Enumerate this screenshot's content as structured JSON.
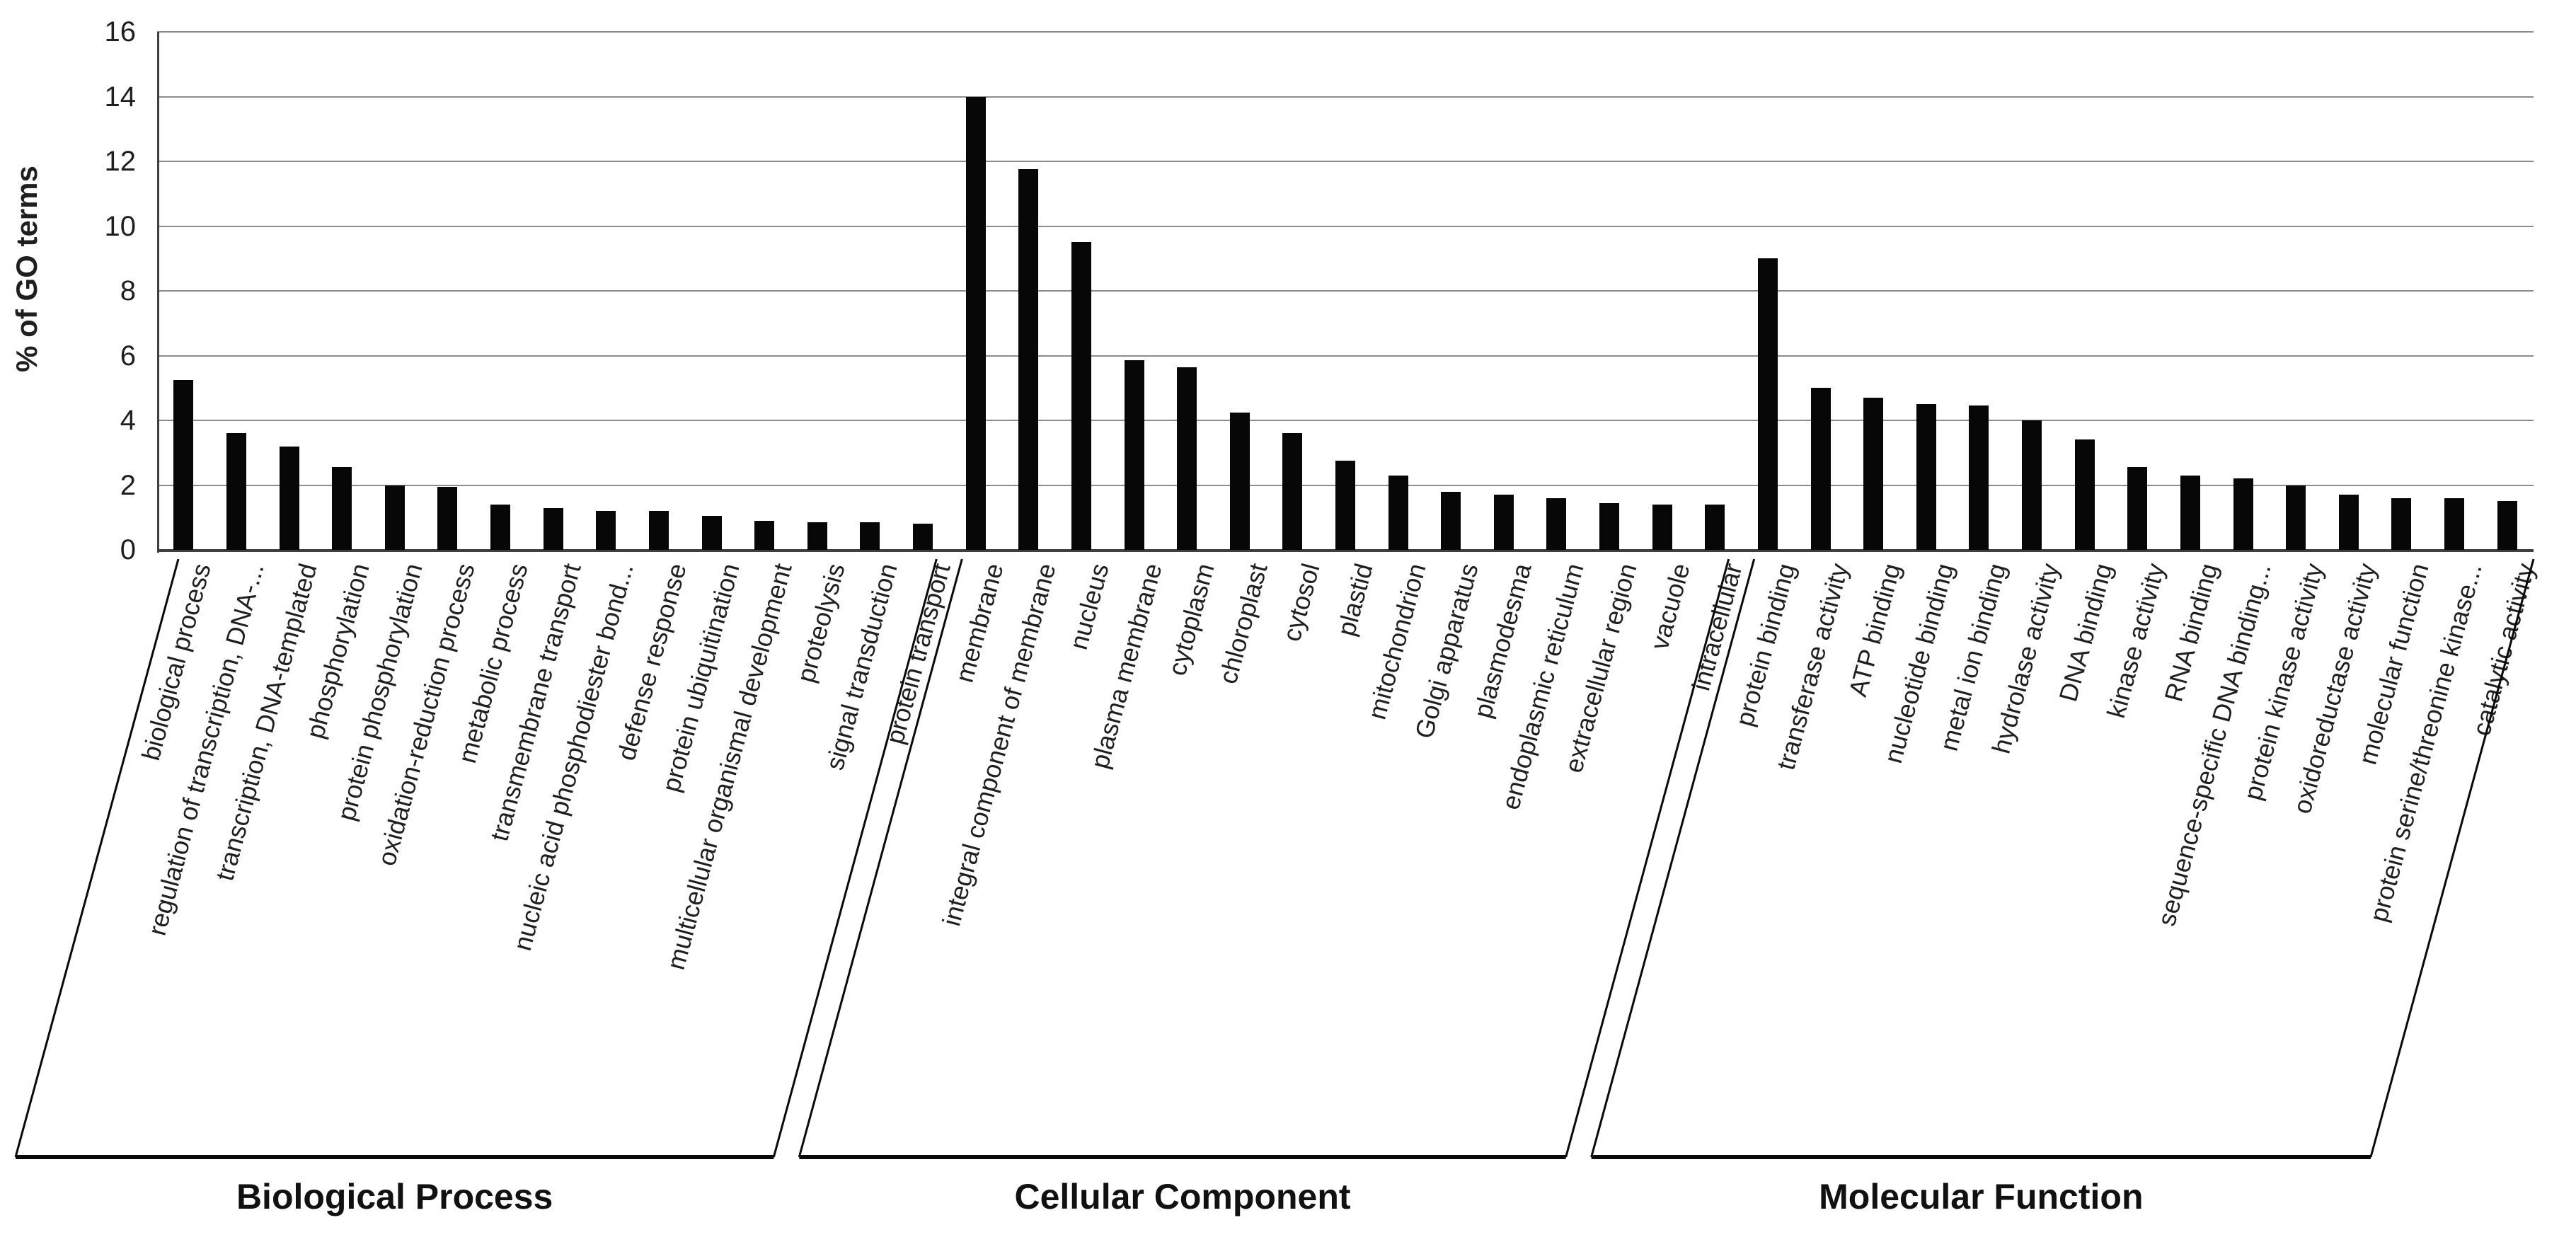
{
  "chart_data": {
    "type": "bar",
    "title": "",
    "ylabel": "% of GO terms",
    "xlabel": "",
    "ylim": [
      0,
      16
    ],
    "ytick_step": 2,
    "grid": true,
    "legend_position": "none",
    "bar_color": "#070707",
    "groups": [
      {
        "label": "Biological Process",
        "categories": [
          "biological process",
          "regulation of transcription, DNA-...",
          "transcription, DNA-templated",
          "phosphorylation",
          "protein phosphorylation",
          "oxidation-reduction process",
          "metabolic process",
          "transmembrane transport",
          "nucleic acid phosphodiester bond...",
          "defense response",
          "protein ubiquitination",
          "multicellular organismal development",
          "proteolysis",
          "signal transduction",
          "protein transport"
        ],
        "values": [
          5.25,
          3.6,
          3.2,
          2.55,
          2.0,
          1.95,
          1.4,
          1.3,
          1.2,
          1.2,
          1.05,
          0.9,
          0.85,
          0.85,
          0.8
        ]
      },
      {
        "label": "Cellular Component",
        "categories": [
          "membrane",
          "integral component of membrane",
          "nucleus",
          "plasma membrane",
          "cytoplasm",
          "chloroplast",
          "cytosol",
          "plastid",
          "mitochondrion",
          "Golgi apparatus",
          "plasmodesma",
          "endoplasmic reticulum",
          "extracellular region",
          "vacuole",
          "intracellular"
        ],
        "values": [
          14.0,
          11.75,
          9.5,
          5.85,
          5.65,
          4.25,
          3.6,
          2.75,
          2.3,
          1.8,
          1.7,
          1.6,
          1.45,
          1.4,
          1.4
        ]
      },
      {
        "label": "Molecular Function",
        "categories": [
          "protein binding",
          "transferase activity",
          "ATP binding",
          "nucleotide binding",
          "metal ion binding",
          "hydrolase activity",
          "DNA binding",
          "kinase activity",
          "RNA binding",
          "sequence-specific DNA binding...",
          "protein kinase activity",
          "oxidoreductase activity",
          "molecular function",
          "protein serine/threonine kinase...",
          "catalytic activity"
        ],
        "values": [
          9.0,
          5.0,
          4.7,
          4.5,
          4.45,
          4.0,
          3.4,
          2.55,
          2.3,
          2.2,
          2.0,
          1.7,
          1.6,
          1.6,
          1.5
        ]
      }
    ]
  }
}
